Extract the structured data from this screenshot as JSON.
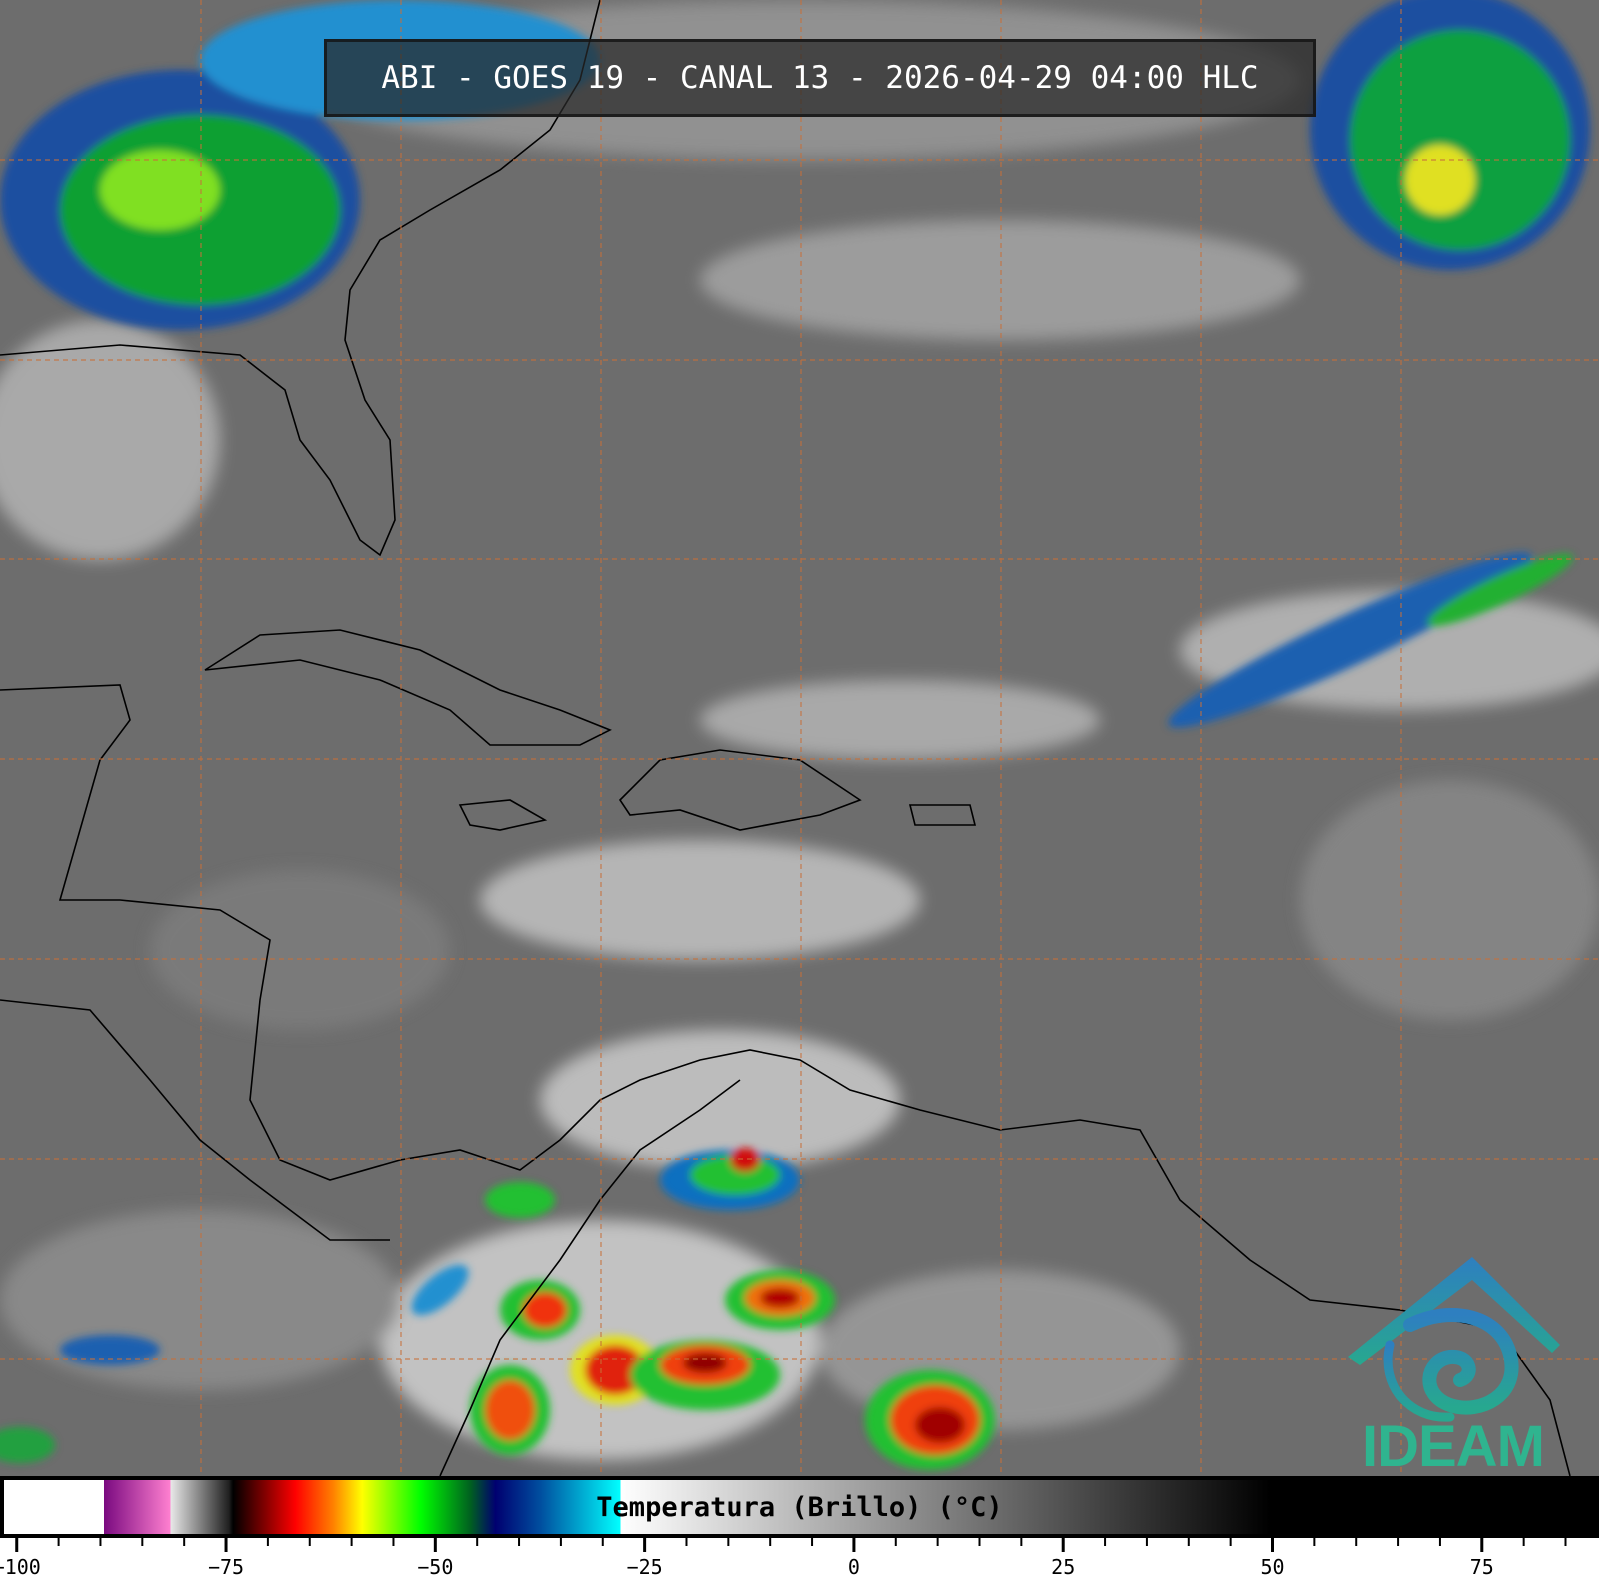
{
  "title": "ABI - GOES 19 - CANAL 13 - 2026-04-29 04:00 HLC",
  "logo": {
    "text": "IDEAM",
    "colors": {
      "roof": "#2e7fc0",
      "spiral": "#27a49a",
      "text": "#2fb48f"
    }
  },
  "colorbar": {
    "label": "Temperatura (Brillo) (°C)",
    "range": [
      -102,
      89
    ],
    "ticks": [
      -100,
      -75,
      -50,
      -25,
      0,
      25,
      50,
      75
    ],
    "tick_labels": [
      "−100",
      "−75",
      "−50",
      "−25",
      "0",
      "25",
      "50",
      "75"
    ],
    "minor_tick_step": 5,
    "color_stops": [
      {
        "t": -102,
        "color": "#ffffff"
      },
      {
        "t": -90,
        "color": "#ffffff"
      },
      {
        "t": -90,
        "color": "#7a0a80"
      },
      {
        "t": -82,
        "color": "#ff80d0"
      },
      {
        "t": -82,
        "color": "#e8e8e8"
      },
      {
        "t": -75,
        "color": "#202020"
      },
      {
        "t": -74.5,
        "color": "#000000"
      },
      {
        "t": -67,
        "color": "#ff0000"
      },
      {
        "t": -62.5,
        "color": "#ff8000"
      },
      {
        "t": -59,
        "color": "#ffff00"
      },
      {
        "t": -52,
        "color": "#00ff00"
      },
      {
        "t": -46,
        "color": "#006020"
      },
      {
        "t": -43,
        "color": "#000070"
      },
      {
        "t": -37.5,
        "color": "#0050a0"
      },
      {
        "t": -28,
        "color": "#00ffff"
      },
      {
        "t": -28,
        "color": "#ffffff"
      },
      {
        "t": 50,
        "color": "#000000"
      },
      {
        "t": 89,
        "color": "#000000"
      }
    ]
  },
  "grid_color": "#c8703a"
}
